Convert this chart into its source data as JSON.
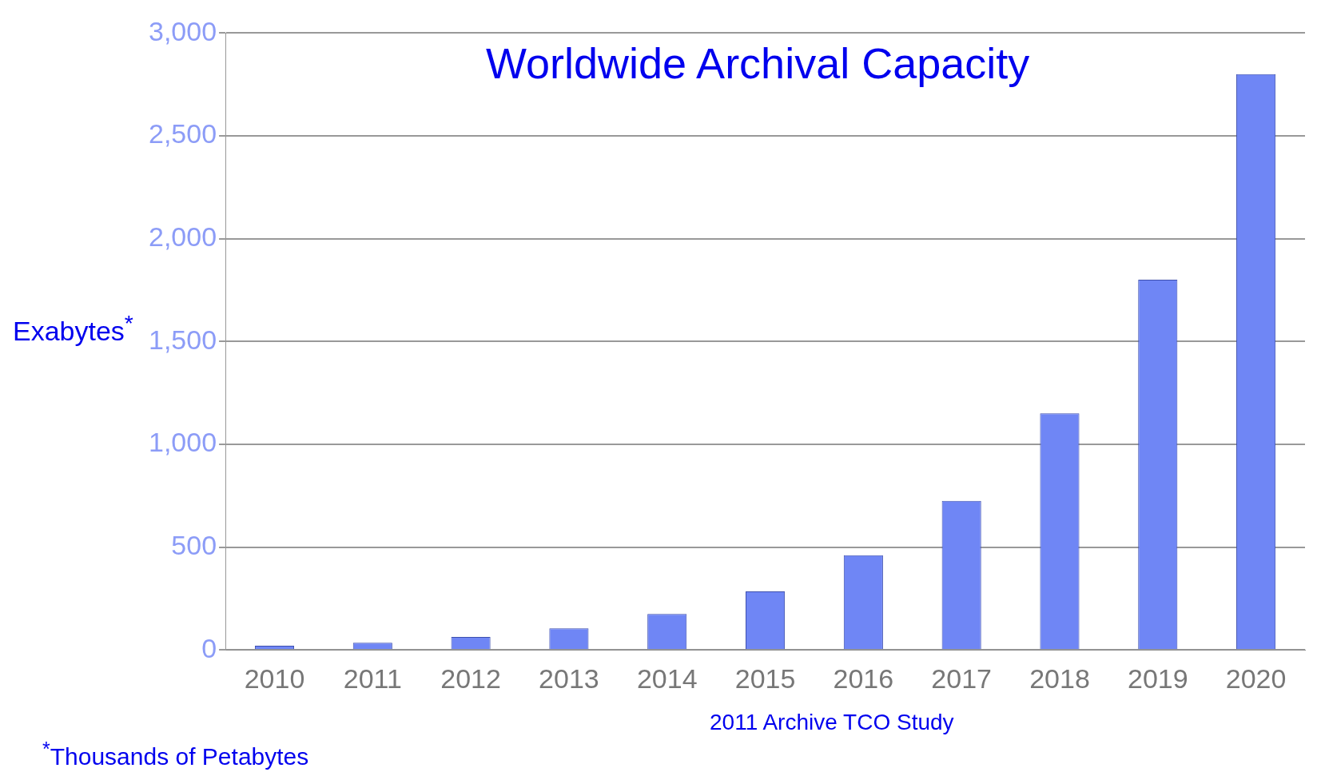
{
  "chart_data": {
    "type": "bar",
    "title": "Worldwide Archival Capacity",
    "ylabel": "Exabytes$^{*}$",
    "categories": [
      "2010",
      "2011",
      "2012",
      "2013",
      "2014",
      "2015",
      "2016",
      "2017",
      "2018",
      "2019",
      "2020"
    ],
    "values": [
      20,
      35,
      63,
      105,
      175,
      285,
      460,
      725,
      1150,
      1800,
      2800
    ],
    "color": "#6f86f5",
    "ylim": [
      0,
      3000
    ],
    "yticks": [
      {
        "value": 0,
        "label": "0"
      },
      {
        "value": 500,
        "label": "500"
      },
      {
        "value": 1000,
        "label": "1,000"
      },
      {
        "value": 1500,
        "label": "1,500"
      },
      {
        "value": 2000,
        "label": "2,000"
      },
      {
        "value": 2500,
        "label": "2,500"
      },
      {
        "value": 3000,
        "label": "3,000"
      }
    ],
    "grid": "y",
    "annotations": [
      "2011 Archive TCO Study",
      "$^{*}$Thousands of Petabytes"
    ]
  }
}
